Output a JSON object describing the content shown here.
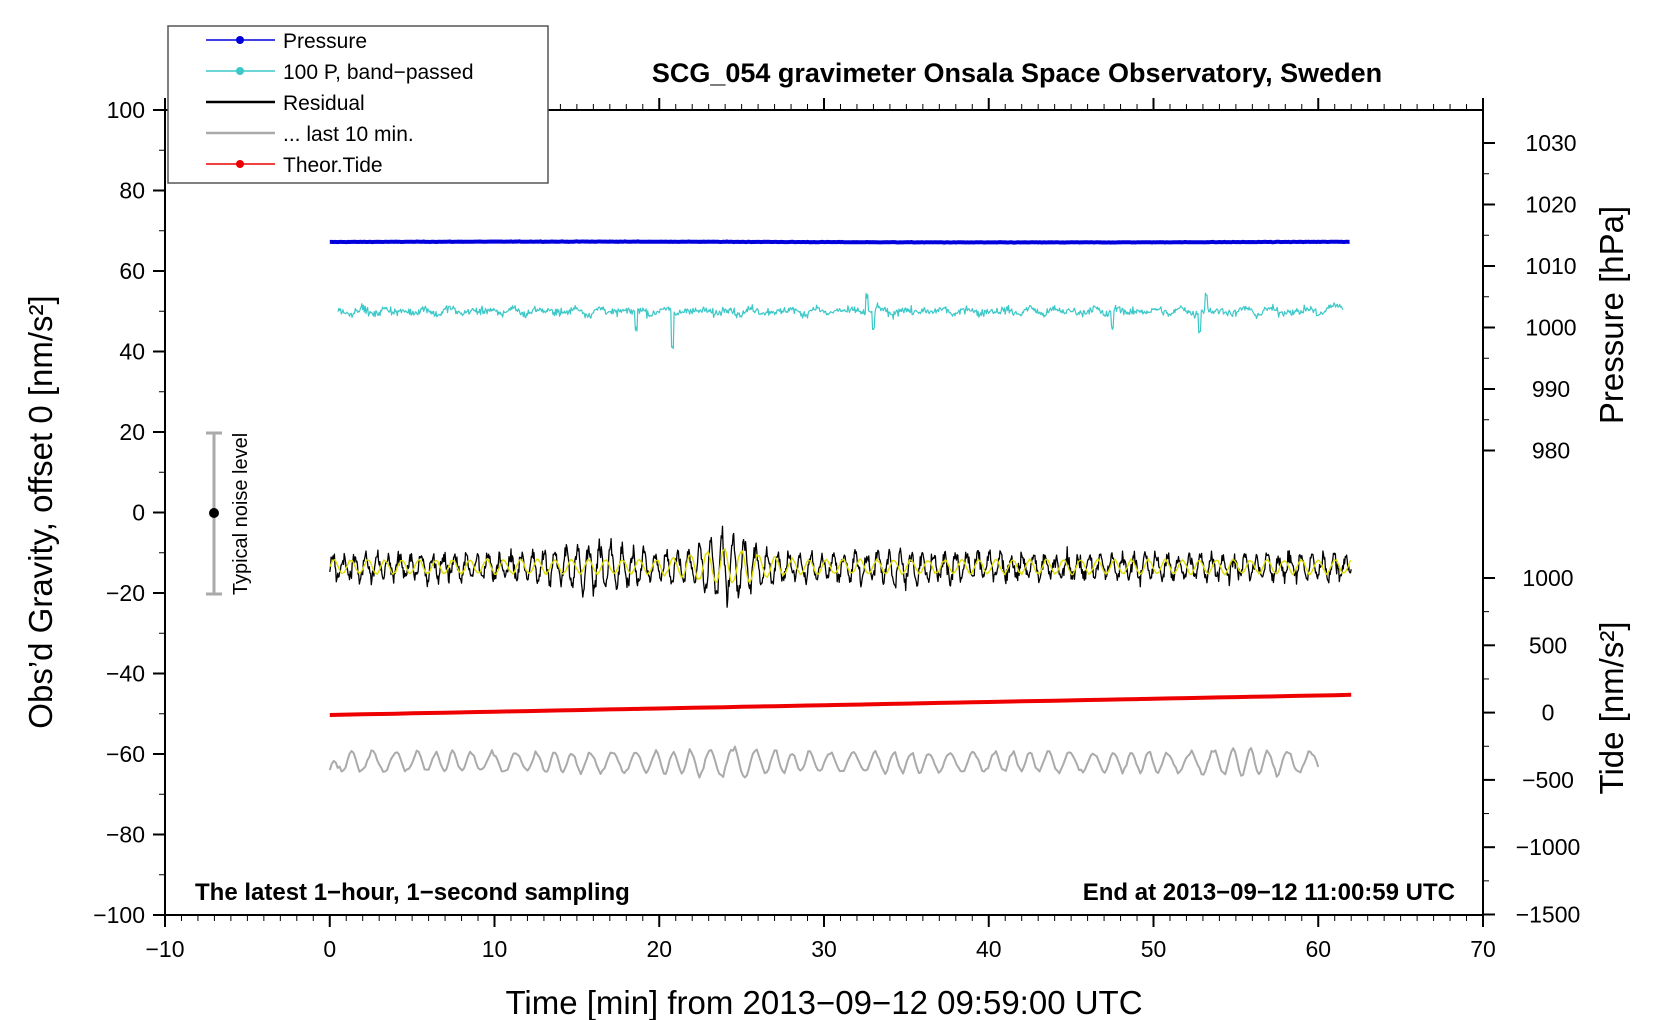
{
  "chart_data": {
    "type": "line",
    "title": "SCG_054 gravimeter Onsala Space Observatory, Sweden",
    "xlabel": "Time [min] from 2013−09−12 09:59:00 UTC",
    "ylabel_left": "Obs’d Gravity, offset 0 [nm/s²]",
    "ylabel_right_pressure": "Pressure [hPa]",
    "ylabel_right_tide": "Tide [nm/s²]",
    "xlim": [
      -10,
      70
    ],
    "ylim": [
      -100,
      100
    ],
    "x_ticks": [
      "−10",
      "0",
      "10",
      "20",
      "30",
      "40",
      "50",
      "60",
      "70"
    ],
    "y_ticks": [
      "100",
      "80",
      "60",
      "40",
      "20",
      "0",
      "−20",
      "−40",
      "−60",
      "−80",
      "−100"
    ],
    "pressure_ticks": [
      "1030",
      "1020",
      "1010",
      "1000",
      "990",
      "980"
    ],
    "tide_ticks": [
      "1000",
      "500",
      "0",
      "−500",
      "−1000",
      "−1500"
    ],
    "legend_position": "top-left",
    "legend": [
      {
        "label": "Pressure",
        "color": "#0000dd",
        "marker": true
      },
      {
        "label": "100 P, band−passed",
        "color": "#3cc8c8",
        "marker": true
      },
      {
        "label": "Residual",
        "color": "#000000",
        "marker": false
      },
      {
        "label": "... last 10 min.",
        "color": "#aaaaaa",
        "marker": false
      },
      {
        "label": "Theor.Tide",
        "color": "#ee0000",
        "marker": true
      }
    ],
    "noise_bar": {
      "label": "Typical noise level",
      "x": -7,
      "center": 0,
      "range": [
        -20,
        20
      ]
    },
    "annotation_left": "The latest 1−hour, 1−second sampling",
    "annotation_right": "End at 2013−09−12 11:00:59 UTC",
    "series": [
      {
        "name": "Pressure",
        "color": "#0000dd",
        "x_range": [
          0,
          62
        ],
        "approx_level": 67.2,
        "pressure_hPa": 1011.5
      },
      {
        "name": "100 P, band−passed",
        "color": "#3cc8c8",
        "x_range": [
          0.5,
          61.5
        ],
        "approx_level": 50,
        "amplitude": 3
      },
      {
        "name": "Residual",
        "color": "#000000",
        "x_range": [
          0,
          62
        ],
        "approx_level": -13.5,
        "amplitude": 6
      },
      {
        "name": "Residual (filtered)",
        "color": "#dddd00",
        "x_range": [
          0,
          62
        ],
        "approx_level": -13.5,
        "amplitude": 2
      },
      {
        "name": "... last 10 min.",
        "color": "#aaaaaa",
        "x_range": [
          0,
          60
        ],
        "approx_level": -62,
        "amplitude": 3
      },
      {
        "name": "Theor.Tide",
        "color": "#ee0000",
        "x_range": [
          0,
          62
        ],
        "y_start": -50.3,
        "y_end": -45.3
      }
    ]
  }
}
